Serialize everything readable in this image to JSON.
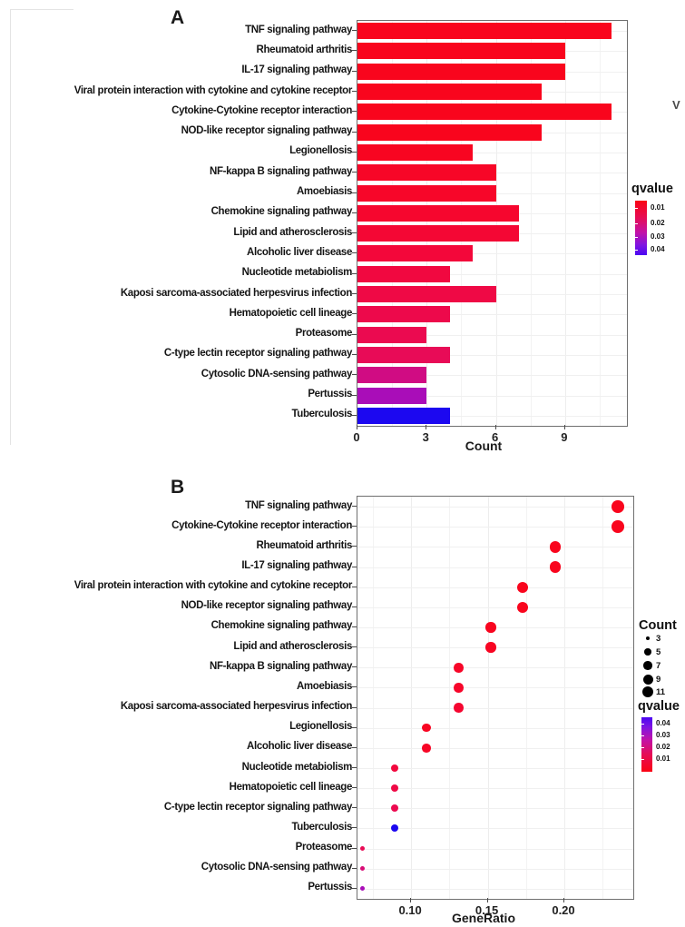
{
  "figure": {
    "panel_a_label": "A",
    "panel_b_label": "B",
    "stray_text": "V"
  },
  "chart_data": [
    {
      "type": "bar",
      "panel": "A",
      "orientation": "horizontal",
      "title": "",
      "xlabel": "Count",
      "ylabel": "",
      "xlim": [
        0,
        11.68
      ],
      "xticks": [
        "0",
        "3",
        "6",
        "9"
      ],
      "grid": true,
      "categories": [
        "TNF signaling pathway",
        "Rheumatoid arthritis",
        "IL-17 signaling pathway",
        "Viral protein interaction with cytokine and cytokine receptor",
        "Cytokine-Cytokine receptor interaction",
        "NOD-like receptor signaling pathway",
        "Legionellosis",
        "NF-kappa B signaling pathway",
        "Amoebiasis",
        "Chemokine signaling pathway",
        "Lipid and atherosclerosis",
        "Alcoholic liver disease",
        "Nucleotide metabiolism",
        "Kaposi sarcoma-associated herpesvirus infection",
        "Hematopoietic cell lineage",
        "Proteasome",
        "C-type lectin receptor signaling pathway",
        "Cytosolic DNA-sensing pathway",
        "Pertussis",
        "Tuberculosis"
      ],
      "values": [
        11,
        9,
        9,
        8,
        11,
        8,
        5,
        6,
        6,
        7,
        7,
        5,
        4,
        6,
        4,
        3,
        4,
        3,
        3,
        4
      ],
      "bar_colors": [
        "#F9051D",
        "#F9051D",
        "#F9051D",
        "#F9051D",
        "#F9051D",
        "#F9051D",
        "#F80521",
        "#F70627",
        "#F70629",
        "#F6062E",
        "#F40734",
        "#F3073A",
        "#F10840",
        "#EF0945",
        "#ED094B",
        "#EB0A50",
        "#E80B57",
        "#D00C83",
        "#A90DB8",
        "#1C08F0"
      ],
      "legend": {
        "title": "qvalue",
        "tick_labels": [
          "0.01",
          "0.02",
          "0.03",
          "0.04"
        ],
        "gradient": [
          "#FA0313",
          "#E50C56",
          "#C311A6",
          "#7E14E2",
          "#4A07F2"
        ]
      }
    },
    {
      "type": "scatter",
      "panel": "B",
      "title": "",
      "xlabel": "GeneRatio",
      "ylabel": "",
      "xlim": [
        0.065,
        0.245
      ],
      "xticks": [
        "0.10",
        "0.15",
        "0.20"
      ],
      "grid": true,
      "categories": [
        "TNF signaling pathway",
        "Cytokine-Cytokine receptor interaction",
        "Rheumatoid arthritis",
        "IL-17 signaling pathway",
        "Viral protein interaction with cytokine and cytokine receptor",
        "NOD-like receptor signaling pathway",
        "Chemokine signaling pathway",
        "Lipid and atherosclerosis",
        "NF-kappa B signaling pathway",
        "Amoebiasis",
        "Kaposi sarcoma-associated herpesvirus infection",
        "Legionellosis",
        "Alcoholic liver disease",
        "Nucleotide metabiolism",
        "Hematopoietic cell lineage",
        "C-type lectin receptor signaling pathway",
        "Tuberculosis",
        "Proteasome",
        "Cytosolic DNA-sensing pathway",
        "Pertussis"
      ],
      "gene_ratio": [
        0.235,
        0.235,
        0.194,
        0.194,
        0.173,
        0.173,
        0.152,
        0.152,
        0.131,
        0.131,
        0.131,
        0.11,
        0.11,
        0.089,
        0.089,
        0.089,
        0.089,
        0.068,
        0.068,
        0.068
      ],
      "count": [
        11,
        11,
        9,
        9,
        8,
        8,
        7,
        7,
        6,
        6,
        6,
        5,
        5,
        4,
        4,
        4,
        4,
        3,
        3,
        3
      ],
      "dot_colors": [
        "#F9051D",
        "#F9051D",
        "#F9051D",
        "#F9051D",
        "#F9051D",
        "#F9051D",
        "#F8051F",
        "#F80522",
        "#F70628",
        "#F7062A",
        "#F50630",
        "#F80522",
        "#F70626",
        "#F2083E",
        "#EF0946",
        "#EC0A50",
        "#1C08F0",
        "#E90B55",
        "#D80C76",
        "#A90DB8"
      ],
      "legend_count": {
        "title": "Count",
        "sizes": [
          "3",
          "5",
          "7",
          "9",
          "11"
        ]
      },
      "legend_qvalue": {
        "title": "qvalue",
        "tick_labels": [
          "0.04",
          "0.03",
          "0.02",
          "0.01"
        ],
        "gradient": [
          "#4A07F2",
          "#7E14E2",
          "#C311A6",
          "#E50C56",
          "#FA0313"
        ]
      }
    }
  ]
}
